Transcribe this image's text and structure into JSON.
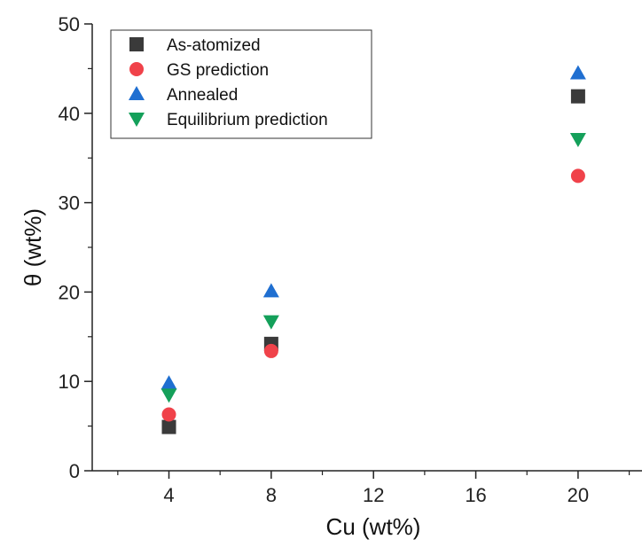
{
  "chart_data": {
    "type": "scatter",
    "xlabel": "Cu (wt%)",
    "ylabel": "θ (wt%)",
    "xlim": [
      1,
      22.5
    ],
    "ylim": [
      0,
      50
    ],
    "xticks": [
      4,
      8,
      12,
      16,
      20
    ],
    "yticks": [
      0,
      10,
      20,
      30,
      40,
      50
    ],
    "grid": false,
    "legend_position": "top-left",
    "series": [
      {
        "name": "As-atomized",
        "marker": "square",
        "color": "#3a3a3a",
        "points": [
          {
            "x": 4,
            "y": 4.9
          },
          {
            "x": 8,
            "y": 14.2
          },
          {
            "x": 20,
            "y": 41.9
          }
        ]
      },
      {
        "name": "GS prediction",
        "marker": "circle",
        "color": "#f0424a",
        "points": [
          {
            "x": 4,
            "y": 6.3
          },
          {
            "x": 8,
            "y": 13.4
          },
          {
            "x": 20,
            "y": 33.0
          }
        ]
      },
      {
        "name": "Annealed",
        "marker": "triangle-up",
        "color": "#1f6fd1",
        "points": [
          {
            "x": 4,
            "y": 9.8
          },
          {
            "x": 8,
            "y": 20.1
          },
          {
            "x": 20,
            "y": 44.5
          }
        ]
      },
      {
        "name": "Equilibrium prediction",
        "marker": "triangle-down",
        "color": "#14a05a",
        "points": [
          {
            "x": 4,
            "y": 8.5
          },
          {
            "x": 8,
            "y": 16.7
          },
          {
            "x": 20,
            "y": 37.1
          }
        ]
      }
    ]
  }
}
